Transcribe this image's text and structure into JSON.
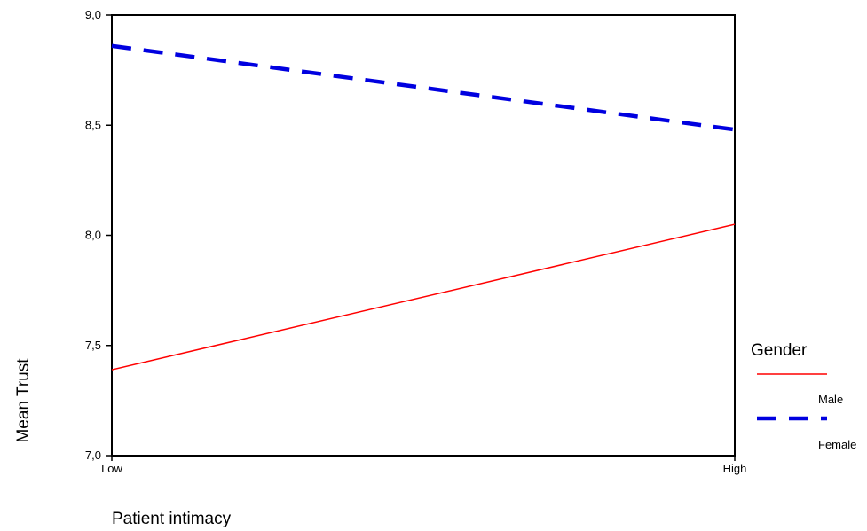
{
  "chart_data": {
    "type": "line",
    "categories": [
      "Low",
      "High"
    ],
    "xlabel": "Patient intimacy",
    "ylabel": "Mean Trust",
    "ylim": [
      7.0,
      9.0
    ],
    "yticks": [
      7.0,
      7.5,
      8.0,
      8.5,
      9.0
    ],
    "ytick_labels": [
      "7,0",
      "7,5",
      "8,0",
      "8,5",
      "9,0"
    ],
    "grid": false,
    "legend": {
      "title": "Gender",
      "placement": "right"
    },
    "series": [
      {
        "name": "Male",
        "values": [
          7.39,
          8.05
        ],
        "color": "#ff0000",
        "style": "solid"
      },
      {
        "name": "Female",
        "values": [
          8.86,
          8.48
        ],
        "color": "#0000e0",
        "style": "dashed"
      }
    ]
  }
}
